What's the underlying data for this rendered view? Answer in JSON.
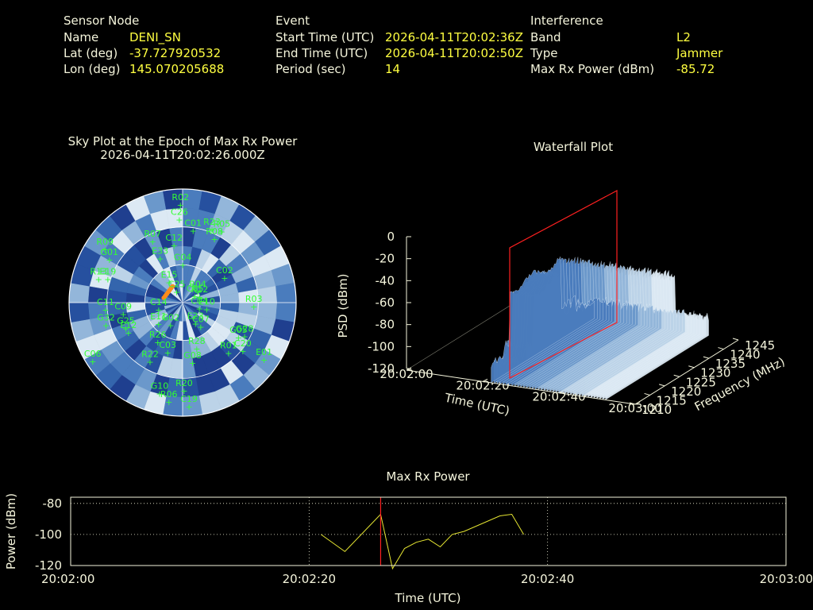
{
  "info": {
    "sensor": {
      "header": "Sensor Node",
      "name_label": "Name",
      "name": "DENI_SN",
      "lat_label": "Lat (deg)",
      "lat": "-37.727920532",
      "lon_label": "Lon (deg)",
      "lon": "145.070205688"
    },
    "event": {
      "header": "Event",
      "start_label": "Start Time (UTC)",
      "start": "2026-04-11T20:02:36Z",
      "end_label": "End Time (UTC)",
      "end": "2026-04-11T20:02:50Z",
      "period_label": "Period (sec)",
      "period": "14"
    },
    "interference": {
      "header": "Interference",
      "band_label": "Band",
      "band": "L2",
      "type_label": "Type",
      "type": "Jammer",
      "power_label": "Max Rx Power (dBm)",
      "power": "-85.72"
    }
  },
  "colors": {
    "text": "#f5f5dc",
    "value": "#ffff40",
    "sat": "#33ff33",
    "track": "#ff8c1a",
    "marker": "#ff2020",
    "line": "#e6e632"
  },
  "chart_data": [
    {
      "type": "polar-heatmap",
      "title": "Sky Plot at the Epoch of Max Rx Power",
      "subtitle": "2026-04-11T20:02:26.000Z",
      "satellites": [
        "G28",
        "R01",
        "E01",
        "E23",
        "R28",
        "R06",
        "R20",
        "G02",
        "R26",
        "C06",
        "E11",
        "G25",
        "C14",
        "R09",
        "G01",
        "E33",
        "R07",
        "C12",
        "G04",
        "C01",
        "C05",
        "R12",
        "C02",
        "R03",
        "C04",
        "E10",
        "C20",
        "G05",
        "C07",
        "G08",
        "C19",
        "G10",
        "C03",
        "R22",
        "E12",
        "G32",
        "C11",
        "C09",
        "R13",
        "E19",
        "E15",
        "C25",
        "R02",
        "C26",
        "R08",
        "R23",
        "R05",
        "R04"
      ]
    },
    {
      "type": "surface",
      "title": "Waterfall Plot",
      "xlabel": "Time (UTC)",
      "ylabel": "Frequency (MHz)",
      "zlabel": "PSD (dBm)",
      "x_ticks": [
        "20:02:00",
        "20:02:20",
        "20:02:40",
        "20:03:00"
      ],
      "y_ticks": [
        "1210",
        "1215",
        "1220",
        "1225",
        "1230",
        "1235",
        "1240",
        "1245"
      ],
      "z_ticks": [
        "0",
        "-20",
        "-40",
        "-60",
        "-80",
        "-100",
        "-120"
      ]
    },
    {
      "type": "line",
      "title": "Max Rx Power",
      "xlabel": "Time (UTC)",
      "ylabel": "Power (dBm)",
      "x_ticks": [
        "20:02:00",
        "20:02:20",
        "20:02:40",
        "20:03:00"
      ],
      "y_ticks": [
        "-80",
        "-100",
        "-120"
      ],
      "xlim": [
        0,
        60
      ],
      "ylim": [
        -120,
        -76
      ],
      "marker_x": 26,
      "x": [
        21,
        23,
        26,
        27,
        28,
        29,
        30,
        31,
        32,
        33,
        36,
        37,
        38
      ],
      "y": [
        -100,
        -111,
        -87,
        -122,
        -109,
        -105,
        -103,
        -108,
        -100,
        -98,
        -88,
        -87,
        -100
      ]
    }
  ]
}
